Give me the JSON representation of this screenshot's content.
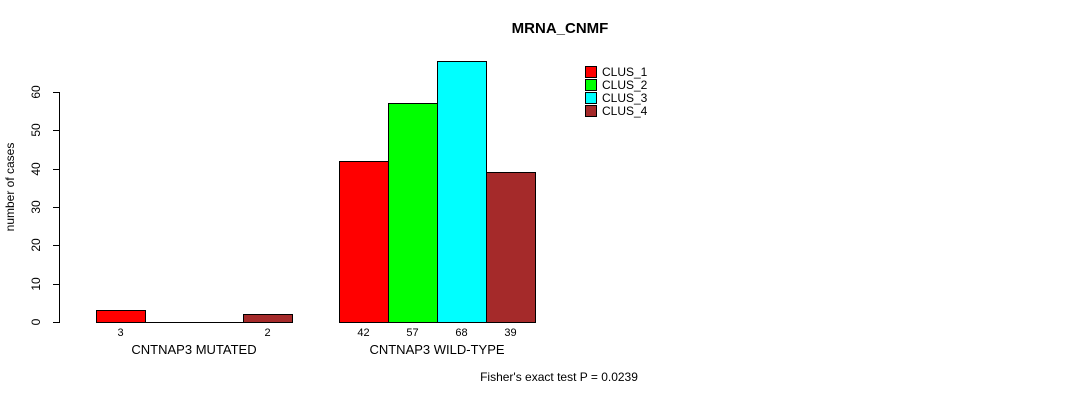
{
  "chart_data": {
    "type": "bar",
    "title": "MRNA_CNMF",
    "xlabel": "",
    "ylabel": "number of cases",
    "ylim": [
      0,
      60
    ],
    "yticks": [
      "0",
      "10",
      "20",
      "30",
      "40",
      "50",
      "60"
    ],
    "grid": false,
    "legend_position": "top-right",
    "series_names": [
      "CLUS_1",
      "CLUS_2",
      "CLUS_3",
      "CLUS_4"
    ],
    "series_colors": [
      "#ff0000",
      "#00ff00",
      "#00ffff",
      "#a52a2a"
    ],
    "categories": [
      "CNTNAP3 MUTATED",
      "CNTNAP3 WILD-TYPE"
    ],
    "groups": [
      {
        "label": "CNTNAP3 MUTATED",
        "values": [
          3,
          0,
          0,
          2
        ]
      },
      {
        "label": "CNTNAP3 WILD-TYPE",
        "values": [
          42,
          57,
          68,
          39
        ]
      }
    ],
    "legend": [
      {
        "label": "CLUS_1",
        "color": "#ff0000"
      },
      {
        "label": "CLUS_2",
        "color": "#00ff00"
      },
      {
        "label": "CLUS_3",
        "color": "#00ffff"
      },
      {
        "label": "CLUS_4",
        "color": "#a52a2a"
      }
    ],
    "annotation": "Fisher's exact test P = 0.0239"
  }
}
